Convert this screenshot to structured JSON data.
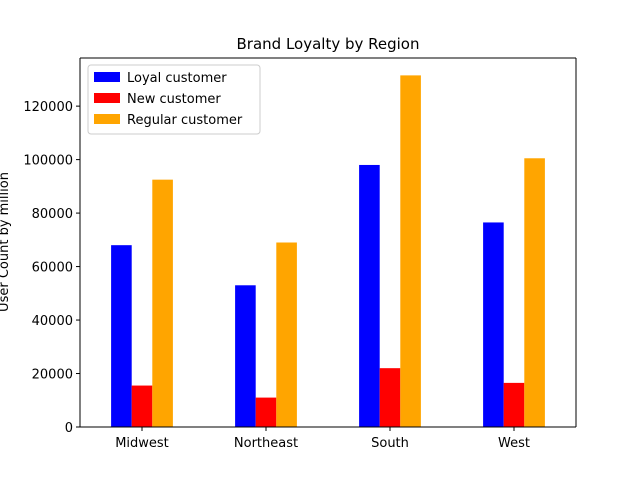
{
  "chart_data": {
    "type": "bar",
    "title": "Brand Loyalty by Region",
    "xlabel": "",
    "ylabel": "User Count by million",
    "categories": [
      "Midwest",
      "Northeast",
      "South",
      "West"
    ],
    "series": [
      {
        "name": "Loyal customer",
        "color": "#0000ff",
        "values": [
          68000,
          53000,
          98000,
          76500
        ]
      },
      {
        "name": "New customer",
        "color": "#ff0000",
        "values": [
          15500,
          11000,
          22000,
          16500
        ]
      },
      {
        "name": "Regular customer",
        "color": "#ffa500",
        "values": [
          92500,
          69000,
          131500,
          100500
        ]
      }
    ],
    "ylim": [
      0,
      138000
    ],
    "yticks": [
      0,
      20000,
      40000,
      60000,
      80000,
      100000,
      120000
    ],
    "grid": false,
    "legend_position": "top-left"
  }
}
